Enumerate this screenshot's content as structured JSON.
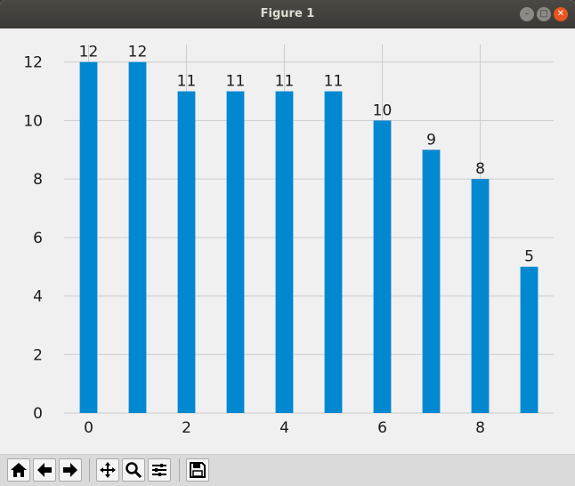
{
  "window": {
    "title": "Figure 1"
  },
  "toolbar": {
    "buttons": [
      {
        "name": "home-button",
        "icon": "home-icon"
      },
      {
        "name": "back-button",
        "icon": "arrow-left-icon"
      },
      {
        "name": "forward-button",
        "icon": "arrow-right-icon"
      },
      {
        "name": "pan-button",
        "icon": "move-icon"
      },
      {
        "name": "zoom-button",
        "icon": "magnifier-icon"
      },
      {
        "name": "configure-subplots-button",
        "icon": "sliders-icon"
      },
      {
        "name": "save-button",
        "icon": "floppy-disk-icon"
      }
    ]
  },
  "chart_data": {
    "type": "bar",
    "title": "",
    "xlabel": "",
    "ylabel": "",
    "x": [
      0,
      1,
      2,
      3,
      4,
      5,
      6,
      7,
      8,
      9
    ],
    "values": [
      12,
      12,
      11,
      11,
      11,
      11,
      10,
      9,
      8,
      5
    ],
    "data_labels": [
      "12",
      "12",
      "11",
      "11",
      "11",
      "11",
      "10",
      "9",
      "8",
      "5"
    ],
    "xticks": [
      0,
      2,
      4,
      6,
      8
    ],
    "xtick_labels": [
      "0",
      "2",
      "4",
      "6",
      "8"
    ],
    "yticks": [
      0,
      2,
      4,
      6,
      8,
      10,
      12
    ],
    "ytick_labels": [
      "0",
      "2",
      "4",
      "6",
      "8",
      "10",
      "12"
    ],
    "ylim": [
      0,
      12.6
    ],
    "xlim": [
      -0.5,
      9.5
    ],
    "grid": true,
    "bar_color": "#0288d1",
    "grid_color": "#cccccc",
    "background": "#f0f0f0"
  }
}
